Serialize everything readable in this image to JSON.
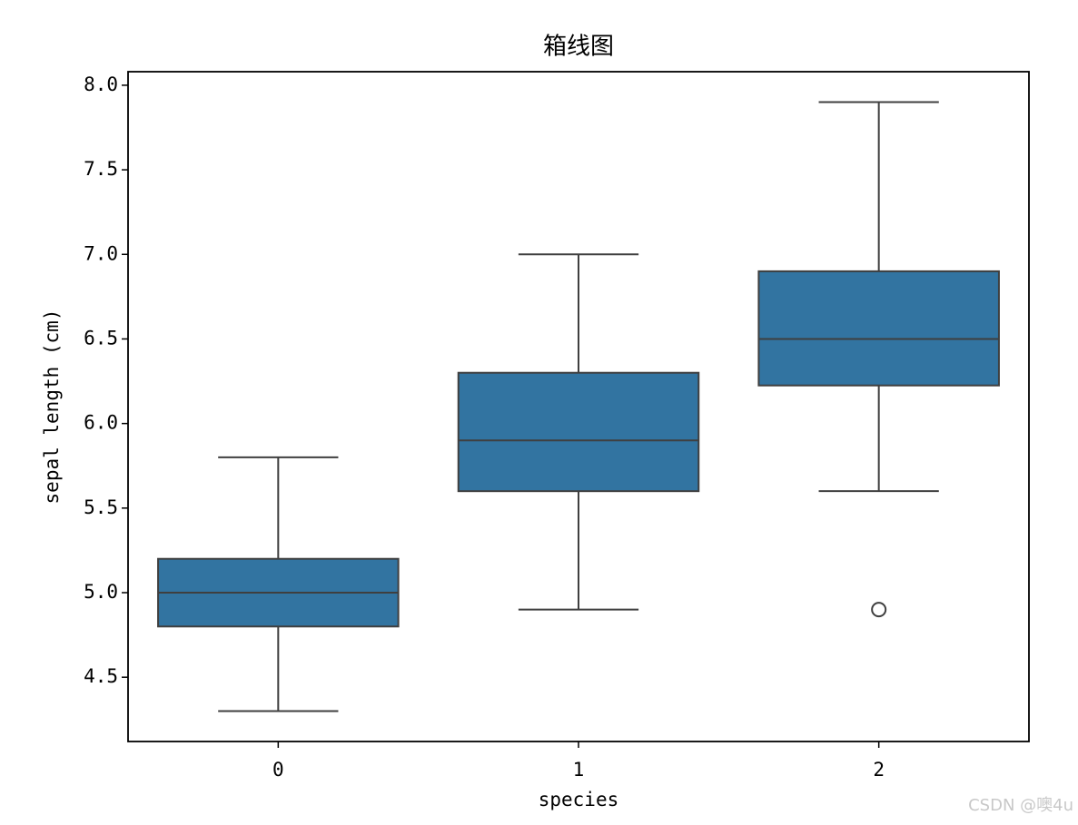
{
  "chart_data": {
    "type": "box",
    "title": "箱线图",
    "xlabel": "species",
    "ylabel": "sepal length (cm)",
    "categories": [
      "0",
      "1",
      "2"
    ],
    "color": "#3274a1",
    "boxes": [
      {
        "whislo": 4.3,
        "q1": 4.8,
        "median": 5.0,
        "q3": 5.2,
        "whishi": 5.8,
        "fliers": []
      },
      {
        "whislo": 4.9,
        "q1": 5.6,
        "median": 5.9,
        "q3": 6.3,
        "whishi": 7.0,
        "fliers": []
      },
      {
        "whislo": 5.6,
        "q1": 6.225,
        "median": 6.5,
        "q3": 6.9,
        "whishi": 7.9,
        "fliers": [
          4.9
        ]
      }
    ],
    "ylim": [
      4.12,
      8.08
    ],
    "yticks": [
      4.5,
      {
        "value": 5,
        "label": "5.0"
      },
      5.5,
      {
        "value": 6,
        "label": "6.0"
      },
      6.5,
      {
        "value": 7,
        "label": "7.0"
      },
      7.5,
      {
        "value": 8,
        "label": "8.0"
      }
    ]
  },
  "watermark": "CSDN @噢4u"
}
